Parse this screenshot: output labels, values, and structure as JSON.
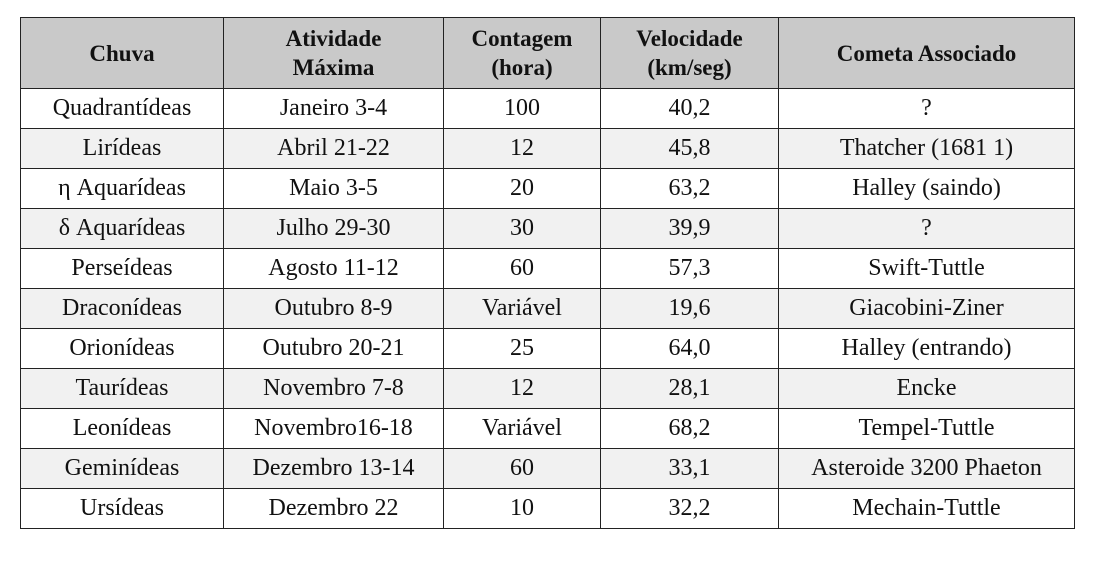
{
  "table": {
    "headers": [
      {
        "line1": "Chuva",
        "line2": ""
      },
      {
        "line1": "Atividade",
        "line2": "Máxima"
      },
      {
        "line1": "Contagem",
        "line2": "(hora)"
      },
      {
        "line1": "Velocidade",
        "line2": "(km/seg)"
      },
      {
        "line1": "Cometa Associado",
        "line2": ""
      }
    ],
    "rows": [
      {
        "chuva": "Quadrantídeas",
        "atividade": "Janeiro 3-4",
        "contagem": "100",
        "velocidade": "40,2",
        "cometa": "?"
      },
      {
        "chuva": "Lirídeas",
        "atividade": "Abril 21-22",
        "contagem": "12",
        "velocidade": "45,8",
        "cometa": "Thatcher (1681 1)"
      },
      {
        "chuva": "η Aquarídeas",
        "atividade": "Maio 3-5",
        "contagem": "20",
        "velocidade": "63,2",
        "cometa": "Halley (saindo)"
      },
      {
        "chuva": "δ Aquarídeas",
        "atividade": "Julho 29-30",
        "contagem": "30",
        "velocidade": "39,9",
        "cometa": "?"
      },
      {
        "chuva": "Perseídeas",
        "atividade": "Agosto 11-12",
        "contagem": "60",
        "velocidade": "57,3",
        "cometa": "Swift-Tuttle"
      },
      {
        "chuva": "Draconídeas",
        "atividade": "Outubro 8-9",
        "contagem": "Variável",
        "velocidade": "19,6",
        "cometa": "Giacobini-Ziner"
      },
      {
        "chuva": "Orionídeas",
        "atividade": "Outubro 20-21",
        "contagem": "25",
        "velocidade": "64,0",
        "cometa": "Halley (entrando)"
      },
      {
        "chuva": "Taurídeas",
        "atividade": "Novembro 7-8",
        "contagem": "12",
        "velocidade": "28,1",
        "cometa": "Encke"
      },
      {
        "chuva": "Leonídeas",
        "atividade": "Novembro16-18",
        "contagem": "Variável",
        "velocidade": "68,2",
        "cometa": "Tempel-Tuttle"
      },
      {
        "chuva": "Geminídeas",
        "atividade": "Dezembro 13-14",
        "contagem": "60",
        "velocidade": "33,1",
        "cometa": "Asteroide 3200 Phaeton"
      },
      {
        "chuva": "Ursídeas",
        "atividade": "Dezembro 22",
        "contagem": "10",
        "velocidade": "32,2",
        "cometa": "Mechain-Tuttle"
      }
    ]
  }
}
